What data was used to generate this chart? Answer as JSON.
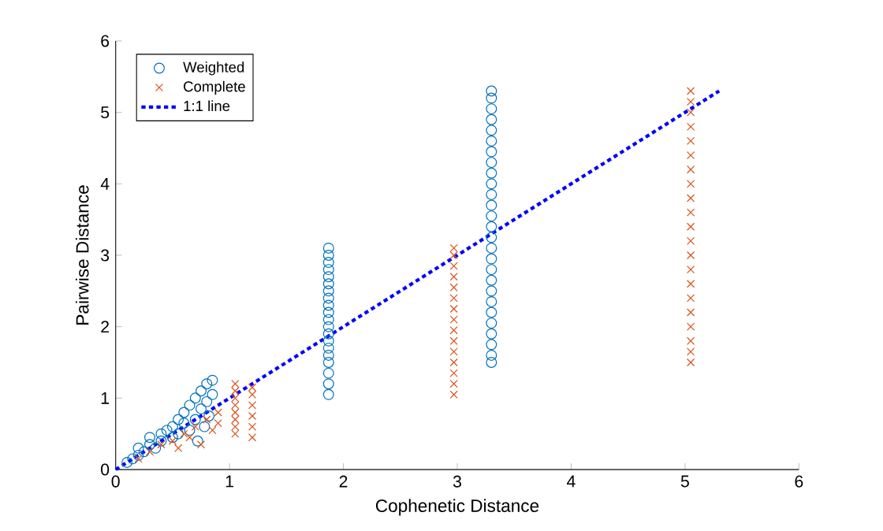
{
  "chart_data": {
    "type": "scatter",
    "xlabel": "Cophenetic Distance",
    "ylabel": "Pairwise Distance",
    "xlim": [
      0,
      6
    ],
    "ylim": [
      0,
      6
    ],
    "xticks": [
      0,
      1,
      2,
      3,
      4,
      5,
      6
    ],
    "yticks": [
      0,
      1,
      2,
      3,
      4,
      5,
      6
    ],
    "legend": "top left",
    "series": [
      {
        "name": "Weighted",
        "color": "#0072bd",
        "marker": "circle",
        "x": [
          0.1,
          0.15,
          0.2,
          0.2,
          0.25,
          0.3,
          0.3,
          0.35,
          0.4,
          0.4,
          0.45,
          0.5,
          0.5,
          0.55,
          0.55,
          0.6,
          0.6,
          0.65,
          0.65,
          0.7,
          0.7,
          0.72,
          0.75,
          0.75,
          0.78,
          0.8,
          0.8,
          0.82,
          0.85,
          0.85,
          1.87,
          1.87,
          1.87,
          1.87,
          1.87,
          1.87,
          1.87,
          1.87,
          1.87,
          1.87,
          1.87,
          1.87,
          1.87,
          1.87,
          1.87,
          1.87,
          1.87,
          1.87,
          1.87,
          1.87,
          3.3,
          3.3,
          3.3,
          3.3,
          3.3,
          3.3,
          3.3,
          3.3,
          3.3,
          3.3,
          3.3,
          3.3,
          3.3,
          3.3,
          3.3,
          3.3,
          3.3,
          3.3,
          3.3,
          3.3,
          3.3,
          3.3,
          3.3,
          3.3,
          3.3,
          3.3,
          3.3
        ],
        "values": [
          0.1,
          0.15,
          0.2,
          0.3,
          0.25,
          0.35,
          0.45,
          0.3,
          0.5,
          0.4,
          0.55,
          0.45,
          0.6,
          0.5,
          0.7,
          0.65,
          0.8,
          0.55,
          0.9,
          0.7,
          1.0,
          0.4,
          0.85,
          1.1,
          0.6,
          0.95,
          1.2,
          0.75,
          1.25,
          1.05,
          1.05,
          1.2,
          1.35,
          1.5,
          1.6,
          1.7,
          1.8,
          1.9,
          2.0,
          2.1,
          2.2,
          2.3,
          2.4,
          2.5,
          2.6,
          2.7,
          2.8,
          2.9,
          3.0,
          3.1,
          1.5,
          1.6,
          1.75,
          1.9,
          2.05,
          2.2,
          2.35,
          2.5,
          2.65,
          2.8,
          2.95,
          3.1,
          3.25,
          3.4,
          3.55,
          3.7,
          3.85,
          4.0,
          4.15,
          4.3,
          4.45,
          4.6,
          4.75,
          4.9,
          5.05,
          5.2,
          5.3
        ]
      },
      {
        "name": "Complete",
        "color": "#d95319",
        "marker": "cross",
        "x": [
          0.2,
          0.3,
          0.4,
          0.5,
          0.55,
          0.6,
          0.65,
          0.7,
          0.75,
          0.8,
          0.85,
          0.9,
          0.9,
          1.05,
          1.05,
          1.05,
          1.05,
          1.05,
          1.05,
          1.05,
          1.05,
          1.2,
          1.2,
          1.2,
          1.2,
          1.2,
          1.2,
          2.97,
          2.97,
          2.97,
          2.97,
          2.97,
          2.97,
          2.97,
          2.97,
          2.97,
          2.97,
          2.97,
          2.97,
          2.97,
          2.97,
          2.97,
          5.05,
          5.05,
          5.05,
          5.05,
          5.05,
          5.05,
          5.05,
          5.05,
          5.05,
          5.05,
          5.05,
          5.05,
          5.05,
          5.05,
          5.05,
          5.05,
          5.05,
          5.05,
          5.05,
          5.05,
          5.05
        ],
        "values": [
          0.15,
          0.25,
          0.35,
          0.4,
          0.3,
          0.5,
          0.45,
          0.6,
          0.35,
          0.7,
          0.55,
          0.8,
          0.65,
          0.5,
          0.6,
          0.7,
          0.8,
          0.9,
          1.0,
          1.1,
          1.2,
          0.45,
          0.6,
          0.75,
          0.9,
          1.05,
          1.15,
          1.05,
          1.2,
          1.35,
          1.5,
          1.65,
          1.8,
          1.95,
          2.1,
          2.25,
          2.4,
          2.55,
          2.7,
          2.85,
          3.0,
          3.1,
          1.5,
          1.65,
          1.8,
          2.0,
          2.2,
          2.4,
          2.6,
          2.8,
          3.0,
          3.2,
          3.4,
          3.6,
          3.8,
          4.0,
          4.2,
          4.4,
          4.6,
          4.8,
          5.0,
          5.15,
          5.3
        ]
      },
      {
        "name": "1:1 line",
        "type": "line",
        "color": "#0000ff",
        "marker": "none",
        "line_style": "dotted",
        "x": [
          0,
          5.3
        ],
        "values": [
          0,
          5.3
        ]
      }
    ]
  }
}
